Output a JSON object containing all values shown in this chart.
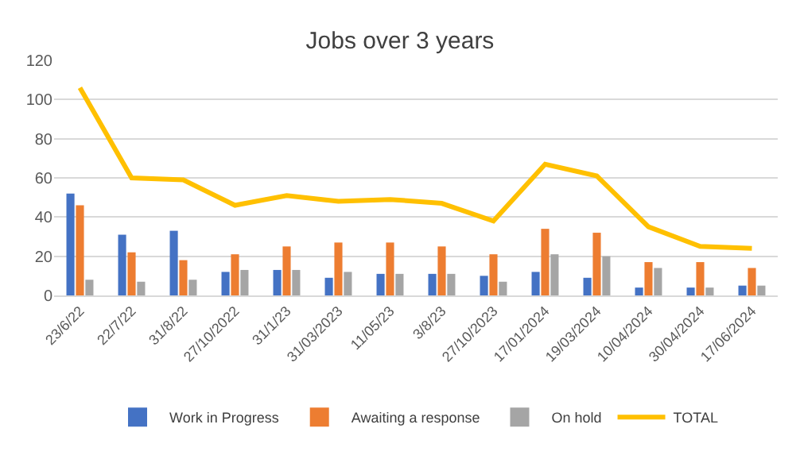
{
  "chart_data": {
    "type": "bar",
    "title": "Jobs over 3 years",
    "categories": [
      "23/6/22",
      "22/7/22",
      "31/8/22",
      "27/10/2022",
      "31/1/23",
      "31/03/2023",
      "11/05/23",
      "3/8/23",
      "27/10/2023",
      "17/01/2024",
      "19/03/2024",
      "10/04/2024",
      "30/04/2024",
      "17/06/2024"
    ],
    "series": [
      {
        "name": "Work in Progress",
        "color": "#4472c4",
        "values": [
          52,
          31,
          33,
          12,
          13,
          9,
          11,
          11,
          10,
          12,
          9,
          4,
          4,
          5
        ]
      },
      {
        "name": "Awaiting a response",
        "color": "#ed7d31",
        "values": [
          46,
          22,
          18,
          21,
          25,
          27,
          27,
          25,
          21,
          34,
          32,
          17,
          17,
          14
        ]
      },
      {
        "name": "On hold",
        "color": "#a5a5a5",
        "values": [
          8,
          7,
          8,
          13,
          13,
          12,
          11,
          11,
          7,
          21,
          20,
          14,
          4,
          5
        ]
      },
      {
        "name": "TOTAL",
        "color": "#ffc000",
        "type": "line",
        "values": [
          106,
          60,
          59,
          46,
          51,
          48,
          49,
          47,
          38,
          67,
          61,
          35,
          25,
          24
        ]
      }
    ],
    "ylim": [
      0,
      120
    ],
    "yticks": [
      0,
      20,
      40,
      60,
      80,
      100,
      120
    ],
    "grid": "y",
    "legend": "bottom",
    "marker": "none"
  }
}
